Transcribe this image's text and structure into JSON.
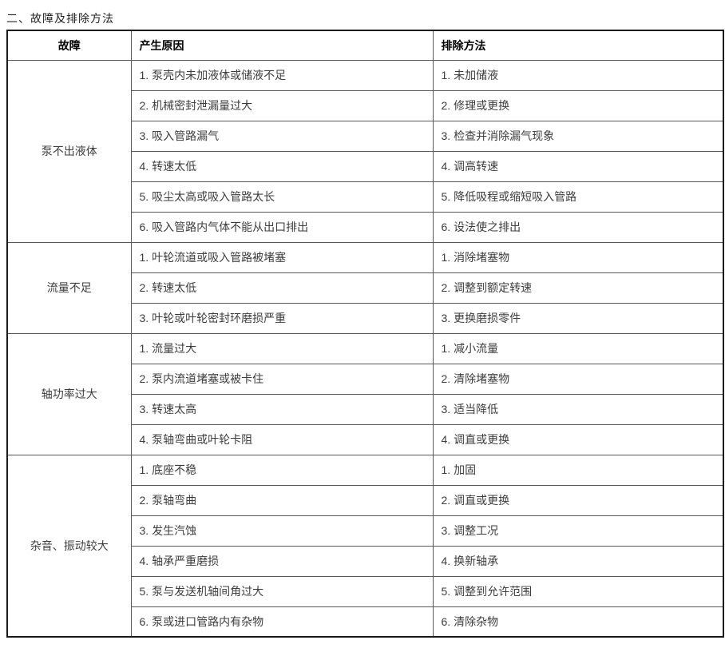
{
  "page_title": "二、故障及排除方法",
  "table": {
    "headers": [
      "故障",
      "产生原因",
      "排除方法"
    ],
    "sections": [
      {
        "fault": "泵不出液体",
        "rows": [
          {
            "cause": "1. 泵壳内未加液体或储液不足",
            "remedy": "1. 未加储液"
          },
          {
            "cause": "2. 机械密封泄漏量过大",
            "remedy": "2. 修理或更换"
          },
          {
            "cause": "3. 吸入管路漏气",
            "remedy": "3. 检查并消除漏气现象"
          },
          {
            "cause": "4. 转速太低",
            "remedy": "4. 调高转速"
          },
          {
            "cause": "5. 吸尘太高或吸入管路太长",
            "remedy": "5. 降低吸程或缩短吸入管路"
          },
          {
            "cause": "6. 吸入管路内气体不能从出口排出",
            "remedy": "6. 设法使之排出"
          }
        ]
      },
      {
        "fault": "流量不足",
        "rows": [
          {
            "cause": "1. 叶轮流道或吸入管路被堵塞",
            "remedy": "1. 消除堵塞物"
          },
          {
            "cause": "2. 转速太低",
            "remedy": "2. 调整到额定转速"
          },
          {
            "cause": "3. 叶轮或叶轮密封环磨损严重",
            "remedy": "3. 更换磨损零件"
          }
        ]
      },
      {
        "fault": "轴功率过大",
        "rows": [
          {
            "cause": "1. 流量过大",
            "remedy": "1. 减小流量"
          },
          {
            "cause": "2. 泵内流道堵塞或被卡住",
            "remedy": "2. 清除堵塞物"
          },
          {
            "cause": "3. 转速太高",
            "remedy": "3. 适当降低"
          },
          {
            "cause": "4. 泵轴弯曲或叶轮卡阻",
            "remedy": "4. 调直或更换"
          }
        ]
      },
      {
        "fault": "杂音、振动较大",
        "rows": [
          {
            "cause": "1. 底座不稳",
            "remedy": "1. 加固"
          },
          {
            "cause": "2. 泵轴弯曲",
            "remedy": "2. 调直或更换"
          },
          {
            "cause": "3. 发生汽蚀",
            "remedy": "3. 调整工况"
          },
          {
            "cause": "4. 轴承严重磨损",
            "remedy": "4. 换新轴承"
          },
          {
            "cause": "5. 泵与发送机轴间角过大",
            "remedy": "5. 调整到允许范围"
          },
          {
            "cause": "6. 泵或进口管路内有杂物",
            "remedy": "6. 清除杂物"
          }
        ]
      }
    ]
  }
}
